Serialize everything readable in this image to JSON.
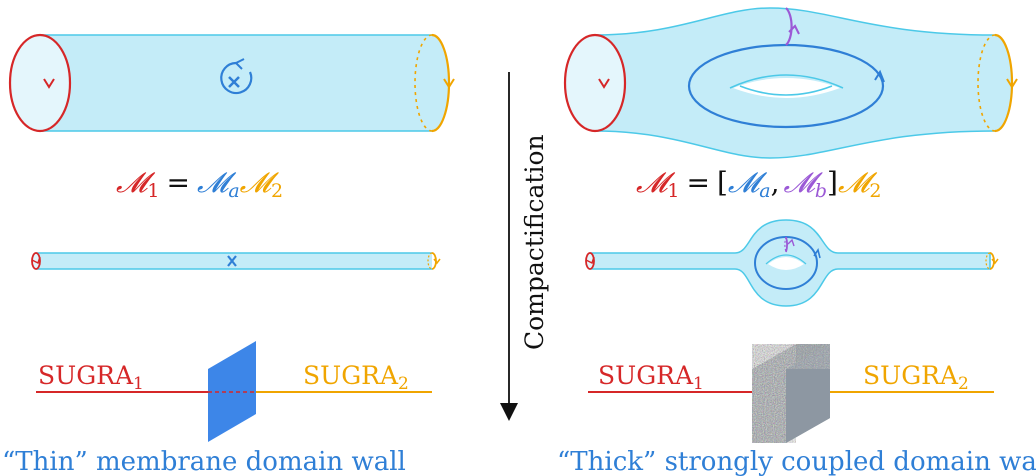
{
  "colors": {
    "red": "#d62728",
    "orange": "#f0a500",
    "blue": "#2f7fd6",
    "purple": "#9b59d6",
    "tube_fill": "#c4ecf8",
    "tube_edge": "#4cc9e8",
    "wall_blue": "#3d86e8",
    "thick_wall": "#9aa3a8"
  },
  "left": {
    "formula": {
      "lhs": "𝓜",
      "lhs_sub": "1",
      "eq": "=",
      "a": "𝓜",
      "a_sub": "a",
      "b": "𝓜",
      "b_sub": "2"
    },
    "sugra1": "SUGRA",
    "sugra1_sub": "1",
    "sugra2": "SUGRA",
    "sugra2_sub": "2",
    "caption": "“Thin” membrane domain wall"
  },
  "middle": {
    "arrow_label": "Compactification"
  },
  "right": {
    "formula": {
      "lhs": "𝓜",
      "lhs_sub": "1",
      "eq": "=",
      "open": "[",
      "a": "𝓜",
      "a_sub": "a",
      "comma": ",",
      "b": "𝓜",
      "b_sub": "b",
      "close": "]",
      "c": "𝓜",
      "c_sub": "2"
    },
    "sugra1": "SUGRA",
    "sugra1_sub": "1",
    "sugra2": "SUGRA",
    "sugra2_sub": "2",
    "caption": "“Thick” strongly coupled domain wall"
  }
}
